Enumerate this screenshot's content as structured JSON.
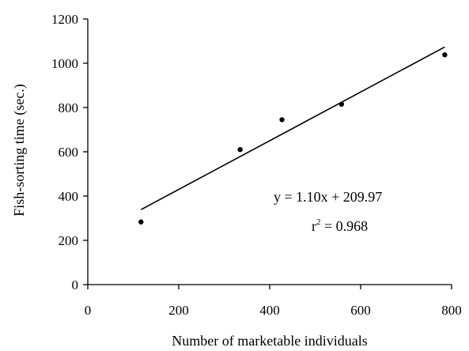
{
  "chart_data": {
    "type": "scatter",
    "xlabel": "Number of marketable individuals",
    "ylabel": "Fish-sorting time (sec.)",
    "xlim": [
      0,
      800
    ],
    "ylim": [
      0,
      1200
    ],
    "xticks": [
      0,
      200,
      400,
      600,
      800
    ],
    "yticks": [
      0,
      200,
      400,
      600,
      800,
      1000,
      1200
    ],
    "grid": false,
    "points": [
      {
        "x": 117,
        "y": 283
      },
      {
        "x": 335,
        "y": 610
      },
      {
        "x": 427,
        "y": 745
      },
      {
        "x": 558,
        "y": 815
      },
      {
        "x": 785,
        "y": 1038
      }
    ],
    "trendline": {
      "slope": 1.1,
      "intercept": 209.97,
      "x_range": [
        117,
        785
      ]
    },
    "annotations": {
      "equation": "y = 1.10x + 209.97",
      "r2_base": "r",
      "r2_sup": "2",
      "r2_rest": " = 0.968"
    },
    "colors": {
      "marker": "#000000",
      "line": "#000000",
      "axis": "#000000"
    }
  }
}
